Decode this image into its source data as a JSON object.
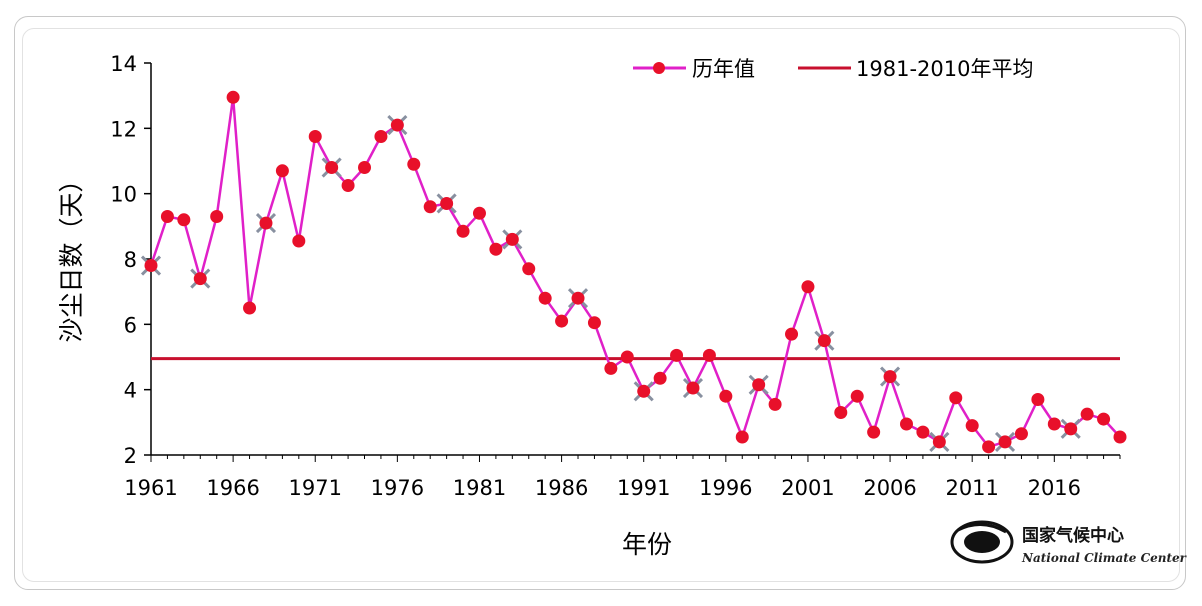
{
  "chart_data": {
    "type": "line",
    "xlabel": "年份",
    "ylabel": "沙尘日数（天）",
    "xlim": [
      1961,
      2020
    ],
    "ylim": [
      2,
      14
    ],
    "yticks": [
      2,
      4,
      6,
      8,
      10,
      12,
      14
    ],
    "xticks": [
      1961,
      1966,
      1971,
      1976,
      1981,
      1986,
      1991,
      1996,
      2001,
      2006,
      2011,
      2016
    ],
    "grid": false,
    "legend_position": "top-right",
    "series": [
      {
        "name": "历年值",
        "color": "#e020c8",
        "marker_color": "#e8102a",
        "x": [
          1961,
          1962,
          1963,
          1964,
          1965,
          1966,
          1967,
          1968,
          1969,
          1970,
          1971,
          1972,
          1973,
          1974,
          1975,
          1976,
          1977,
          1978,
          1979,
          1980,
          1981,
          1982,
          1983,
          1984,
          1985,
          1986,
          1987,
          1988,
          1989,
          1990,
          1991,
          1992,
          1993,
          1994,
          1995,
          1996,
          1997,
          1998,
          1999,
          2000,
          2001,
          2002,
          2003,
          2004,
          2005,
          2006,
          2007,
          2008,
          2009,
          2010,
          2011,
          2012,
          2013,
          2014,
          2015,
          2016,
          2017,
          2018,
          2019,
          2020
        ],
        "values": [
          7.8,
          9.3,
          9.2,
          7.4,
          9.3,
          12.95,
          6.5,
          9.1,
          10.7,
          8.55,
          11.75,
          10.8,
          10.25,
          10.8,
          11.75,
          12.1,
          10.9,
          9.6,
          9.7,
          8.85,
          9.4,
          8.3,
          8.6,
          7.7,
          6.8,
          6.1,
          6.8,
          6.05,
          4.65,
          5.0,
          3.95,
          4.35,
          5.05,
          4.05,
          5.05,
          3.8,
          2.55,
          4.15,
          3.55,
          5.7,
          7.15,
          5.5,
          3.3,
          3.8,
          2.7,
          4.4,
          2.95,
          2.7,
          2.4,
          3.75,
          2.9,
          2.25,
          2.4,
          2.65,
          3.7,
          2.95,
          2.8,
          3.25,
          3.1,
          2.55
        ],
        "cross_marked_years": [
          1961,
          1964,
          1968,
          1972,
          1976,
          1979,
          1983,
          1987,
          1991,
          1994,
          1998,
          2002,
          2006,
          2009,
          2013,
          2017
        ]
      },
      {
        "name": "1981-2010年平均",
        "color": "#c8102e",
        "constant_value": 4.95
      }
    ]
  },
  "logo": {
    "name_cn": "国家气候中心",
    "name_en": "National Climate Center"
  }
}
